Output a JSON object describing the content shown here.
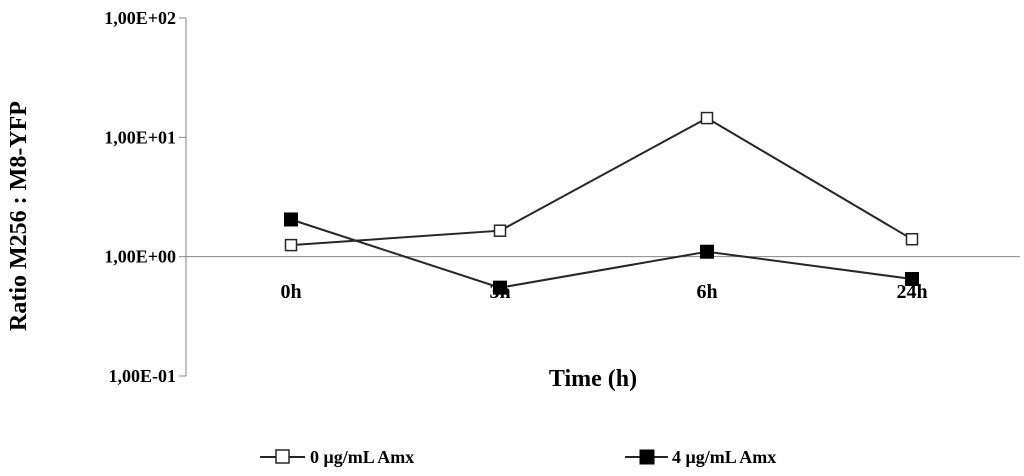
{
  "chart_data": {
    "type": "line",
    "xlabel": "Time (h)",
    "ylabel": "Ratio M256 : M8-YFP",
    "y_scale": "log",
    "ylim": [
      0.1,
      100
    ],
    "y_ticks": [
      "1,00E-01",
      "1,00E+00",
      "1,00E+01",
      "1,00E+02"
    ],
    "categories": [
      "0h",
      "3h",
      "6h",
      "24h"
    ],
    "grid": false,
    "legend_position": "bottom",
    "series": [
      {
        "name": "0 μg/mL Amx",
        "marker": "hollow-square",
        "values": [
          1.25,
          1.65,
          14.5,
          1.4
        ]
      },
      {
        "name": "4 μg/mL Amx",
        "marker": "filled-square",
        "values": [
          2.05,
          0.55,
          1.1,
          0.65
        ]
      }
    ]
  },
  "colors": {
    "line": "#262626",
    "axis": "#868686",
    "marker_fill_filled": "#000000",
    "marker_fill_hollow": "#ffffff"
  }
}
